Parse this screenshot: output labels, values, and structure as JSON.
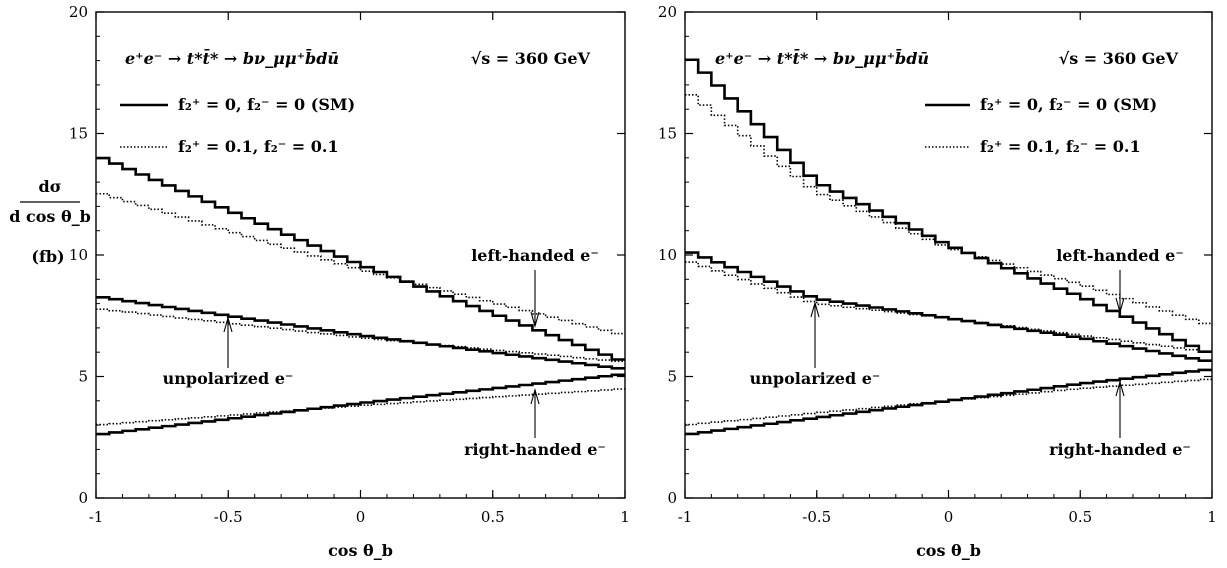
{
  "chart_data": [
    {
      "type": "line",
      "step": true,
      "process": "e⁺e⁻ → t*t̄* → bν_μμ⁺b̄dū",
      "energy": "√s = 360 GeV",
      "xlabel": "cos θ_b",
      "ylabel": "dσ / d cos θ_b",
      "ylabel_unit": "(fb)",
      "xlim": [
        -1,
        1
      ],
      "ylim": [
        0,
        20
      ],
      "xticks": [
        "-1",
        "-0.5",
        "0",
        "0.5",
        "1"
      ],
      "yticks": [
        "0",
        "5",
        "10",
        "15",
        "20"
      ],
      "legend": [
        {
          "label": "f₂⁺ = 0, f₂⁻ = 0 (SM)",
          "style": "solid"
        },
        {
          "label": "f₂⁺ = 0.1, f₂⁻ = 0.1",
          "style": "dotted"
        }
      ],
      "annotations": [
        {
          "text": "left-handed e⁻",
          "x": 0.65,
          "y": 6.9
        },
        {
          "text": "unpolarized e⁻",
          "x": -0.5,
          "y": 7.5
        },
        {
          "text": "right-handed e⁻",
          "x": 0.65,
          "y": 4.5
        }
      ],
      "series": [
        {
          "group": "left-handed",
          "style": "solid",
          "x": [
            -1,
            0,
            1
          ],
          "y": [
            14.1,
            9.6,
            5.6
          ]
        },
        {
          "group": "left-handed",
          "style": "dotted",
          "x": [
            -1,
            0,
            1
          ],
          "y": [
            12.6,
            9.4,
            6.7
          ]
        },
        {
          "group": "unpolarized",
          "style": "solid",
          "x": [
            -1,
            0,
            1
          ],
          "y": [
            8.3,
            6.7,
            5.3
          ]
        },
        {
          "group": "unpolarized",
          "style": "dotted",
          "x": [
            -1,
            0,
            1
          ],
          "y": [
            7.8,
            6.6,
            5.6
          ]
        },
        {
          "group": "right-handed",
          "style": "solid",
          "x": [
            -1,
            0,
            1
          ],
          "y": [
            2.6,
            3.9,
            5.1
          ]
        },
        {
          "group": "right-handed",
          "style": "dotted",
          "x": [
            -1,
            0,
            1
          ],
          "y": [
            3.0,
            3.8,
            4.5
          ]
        }
      ]
    },
    {
      "type": "line",
      "step": true,
      "process": "e⁺e⁻ → t*t̄* → bν_μμ⁺b̄dū",
      "energy": "√s = 360 GeV",
      "xlabel": "cos θ_b",
      "ylabel": "",
      "xlim": [
        -1,
        1
      ],
      "ylim": [
        0,
        20
      ],
      "xticks": [
        "-1",
        "-0.5",
        "0",
        "0.5",
        "1"
      ],
      "yticks": [
        "0",
        "5",
        "10",
        "15",
        "20"
      ],
      "legend": [
        {
          "label": "f₂⁺ = 0, f₂⁻ = 0 (SM)",
          "style": "solid"
        },
        {
          "label": "f₂⁺ = 0.1, f₂⁻ = 0.1",
          "style": "dotted"
        }
      ],
      "annotations": [
        {
          "text": "left-handed e⁻",
          "x": 0.65,
          "y": 7.5
        },
        {
          "text": "unpolarized e⁻",
          "x": -0.5,
          "y": 8.0
        },
        {
          "text": "right-handed e⁻",
          "x": 0.65,
          "y": 4.8
        }
      ],
      "series": [
        {
          "group": "left-handed",
          "style": "solid",
          "x": [
            -1,
            -0.5,
            0,
            0.5,
            1
          ],
          "y": [
            18.3,
            13.0,
            10.4,
            8.3,
            5.9
          ]
        },
        {
          "group": "left-handed",
          "style": "dotted",
          "x": [
            -1,
            -0.5,
            0,
            0.5,
            1
          ],
          "y": [
            16.8,
            12.6,
            10.3,
            8.8,
            7.1
          ]
        },
        {
          "group": "unpolarized",
          "style": "solid",
          "x": [
            -1,
            -0.5,
            0,
            0.5,
            1
          ],
          "y": [
            10.2,
            8.2,
            7.4,
            6.6,
            5.6
          ]
        },
        {
          "group": "unpolarized",
          "style": "dotted",
          "x": [
            -1,
            -0.5,
            0,
            0.5,
            1
          ],
          "y": [
            9.8,
            8.0,
            7.4,
            6.7,
            6.0
          ]
        },
        {
          "group": "right-handed",
          "style": "solid",
          "x": [
            -1,
            -0.5,
            0,
            0.5,
            1
          ],
          "y": [
            2.6,
            3.3,
            4.0,
            4.7,
            5.3
          ]
        },
        {
          "group": "right-handed",
          "style": "dotted",
          "x": [
            -1,
            -0.5,
            0,
            0.5,
            1
          ],
          "y": [
            3.0,
            3.5,
            4.0,
            4.5,
            4.9
          ]
        }
      ]
    }
  ]
}
